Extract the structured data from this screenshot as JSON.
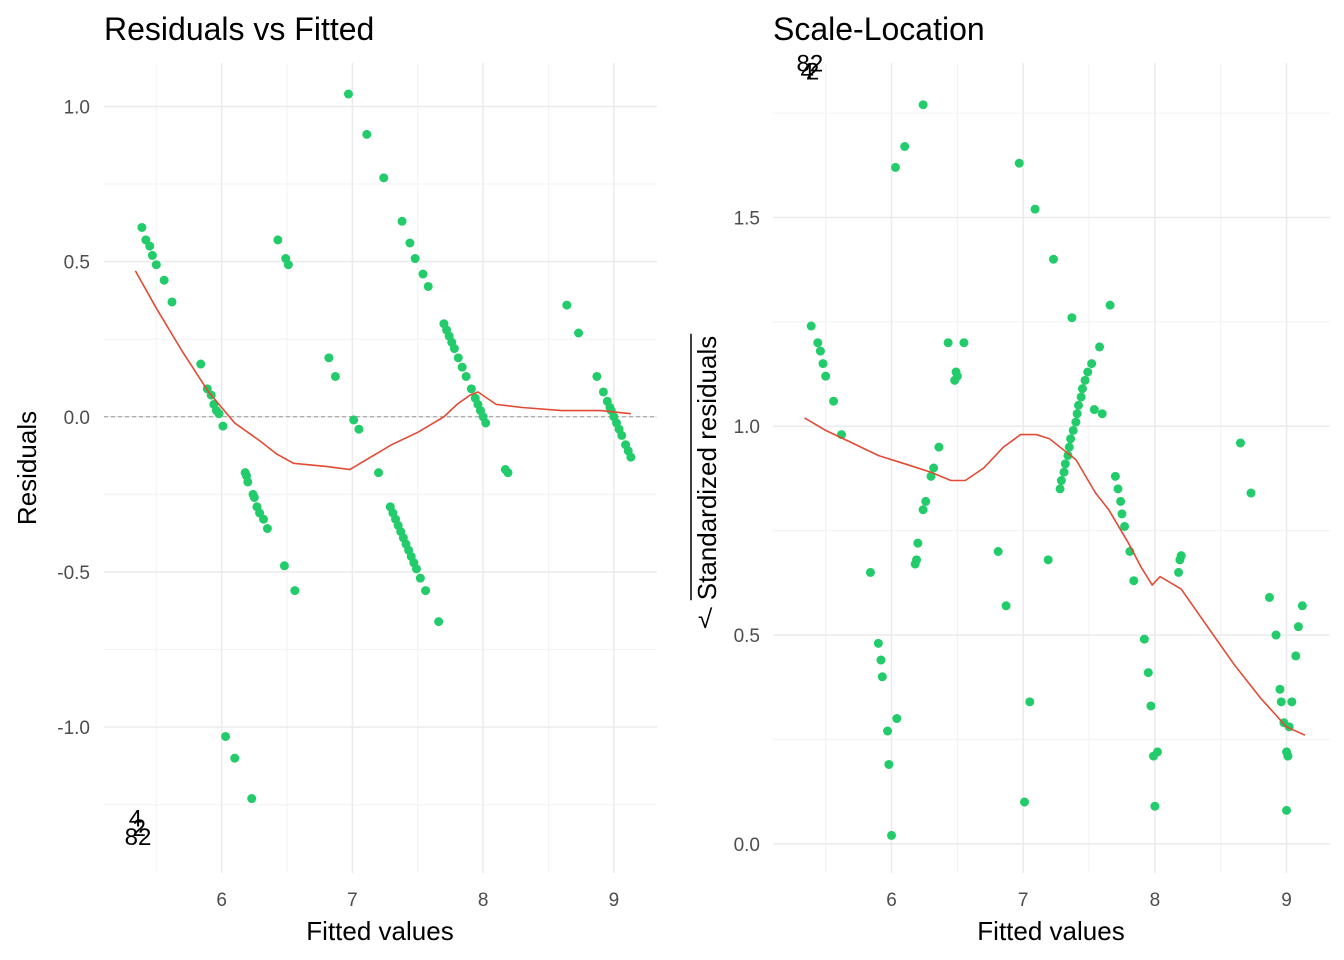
{
  "colors": {
    "points": "#22CC6A",
    "smooth": "#E24A33",
    "grid_major": "#EBEBEB",
    "grid_minor": "#F4F4F4",
    "zero_line": "#999999"
  },
  "chart_data": [
    {
      "type": "scatter",
      "title": "Residuals vs Fitted",
      "xlabel": "Fitted values",
      "ylabel": "Residuals",
      "xlim": [
        5.1,
        9.33
      ],
      "ylim": [
        -1.47,
        1.14
      ],
      "xticks": [
        6,
        7,
        8,
        9
      ],
      "xtick_labels": [
        "6",
        "7",
        "8",
        "9"
      ],
      "yticks": [
        -1.0,
        -0.5,
        0.0,
        0.5,
        1.0
      ],
      "ytick_labels": [
        "-1.0",
        "-0.5",
        "0.0",
        "0.5",
        "1.0"
      ],
      "grid": true,
      "reference_line": 0,
      "points": [
        [
          5.39,
          0.61
        ],
        [
          5.42,
          0.57
        ],
        [
          5.45,
          0.55
        ],
        [
          5.47,
          0.52
        ],
        [
          5.5,
          0.49
        ],
        [
          5.56,
          0.44
        ],
        [
          5.62,
          0.37
        ],
        [
          5.84,
          0.17
        ],
        [
          5.89,
          0.09
        ],
        [
          5.92,
          0.07
        ],
        [
          5.94,
          0.04
        ],
        [
          5.96,
          0.02
        ],
        [
          5.98,
          0.01
        ],
        [
          6.01,
          -0.03
        ],
        [
          6.03,
          -1.03
        ],
        [
          6.1,
          -1.1
        ],
        [
          6.18,
          -0.18
        ],
        [
          6.19,
          -0.19
        ],
        [
          6.2,
          -0.21
        ],
        [
          6.23,
          -1.23
        ],
        [
          6.24,
          -0.25
        ],
        [
          6.25,
          -0.26
        ],
        [
          6.27,
          -0.29
        ],
        [
          6.29,
          -0.31
        ],
        [
          6.32,
          -0.33
        ],
        [
          6.35,
          -0.36
        ],
        [
          6.43,
          0.57
        ],
        [
          6.48,
          -0.48
        ],
        [
          6.49,
          0.51
        ],
        [
          6.51,
          0.49
        ],
        [
          6.56,
          -0.56
        ],
        [
          6.82,
          0.19
        ],
        [
          6.87,
          0.13
        ],
        [
          6.97,
          1.04
        ],
        [
          7.01,
          -0.01
        ],
        [
          7.05,
          -0.04
        ],
        [
          7.11,
          0.91
        ],
        [
          7.2,
          -0.18
        ],
        [
          7.24,
          0.77
        ],
        [
          7.29,
          -0.29
        ],
        [
          7.31,
          -0.31
        ],
        [
          7.33,
          -0.33
        ],
        [
          7.35,
          -0.35
        ],
        [
          7.37,
          -0.37
        ],
        [
          7.38,
          0.63
        ],
        [
          7.39,
          -0.39
        ],
        [
          7.41,
          -0.41
        ],
        [
          7.43,
          -0.43
        ],
        [
          7.44,
          0.56
        ],
        [
          7.45,
          -0.45
        ],
        [
          7.47,
          -0.47
        ],
        [
          7.48,
          0.51
        ],
        [
          7.49,
          -0.49
        ],
        [
          7.52,
          -0.52
        ],
        [
          7.54,
          0.46
        ],
        [
          7.56,
          -0.56
        ],
        [
          7.58,
          0.42
        ],
        [
          7.66,
          -0.66
        ],
        [
          7.7,
          0.3
        ],
        [
          7.72,
          0.28
        ],
        [
          7.74,
          0.26
        ],
        [
          7.76,
          0.24
        ],
        [
          7.78,
          0.22
        ],
        [
          7.81,
          0.19
        ],
        [
          7.84,
          0.16
        ],
        [
          7.87,
          0.13
        ],
        [
          7.91,
          0.09
        ],
        [
          7.94,
          0.06
        ],
        [
          7.96,
          0.04
        ],
        [
          7.98,
          0.02
        ],
        [
          8.0,
          0.0
        ],
        [
          8.02,
          -0.02
        ],
        [
          8.17,
          -0.17
        ],
        [
          8.19,
          -0.18
        ],
        [
          8.64,
          0.36
        ],
        [
          8.73,
          0.27
        ],
        [
          8.87,
          0.13
        ],
        [
          8.92,
          0.08
        ],
        [
          8.95,
          0.05
        ],
        [
          8.97,
          0.03
        ],
        [
          8.98,
          0.02
        ],
        [
          9.0,
          0.0
        ],
        [
          9.02,
          -0.02
        ],
        [
          9.04,
          -0.04
        ],
        [
          9.06,
          -0.06
        ],
        [
          9.09,
          -0.09
        ],
        [
          9.11,
          -0.11
        ],
        [
          9.13,
          -0.13
        ]
      ],
      "smooth": [
        [
          5.34,
          0.47
        ],
        [
          5.5,
          0.35
        ],
        [
          5.7,
          0.21
        ],
        [
          5.9,
          0.08
        ],
        [
          6.1,
          -0.02
        ],
        [
          6.3,
          -0.08
        ],
        [
          6.42,
          -0.12
        ],
        [
          6.55,
          -0.15
        ],
        [
          6.8,
          -0.16
        ],
        [
          6.98,
          -0.17
        ],
        [
          7.1,
          -0.14
        ],
        [
          7.3,
          -0.09
        ],
        [
          7.5,
          -0.05
        ],
        [
          7.7,
          0.0
        ],
        [
          7.8,
          0.04
        ],
        [
          7.9,
          0.07
        ],
        [
          7.96,
          0.08
        ],
        [
          8.1,
          0.04
        ],
        [
          8.3,
          0.03
        ],
        [
          8.6,
          0.02
        ],
        [
          8.9,
          0.02
        ],
        [
          9.13,
          0.01
        ]
      ],
      "labels": [
        {
          "text": "4",
          "x": 5.34,
          "y": -1.32
        },
        {
          "text": "2",
          "x": 5.37,
          "y": -1.35
        },
        {
          "text": "82",
          "x": 5.36,
          "y": -1.38
        }
      ]
    },
    {
      "type": "scatter",
      "title": "Scale-Location",
      "xlabel": "Fitted values",
      "ylabel": "Standardized residuals",
      "ylabel_prefix": "√",
      "xlim": [
        5.1,
        9.33
      ],
      "ylim": [
        -0.07,
        1.87
      ],
      "xticks": [
        6,
        7,
        8,
        9
      ],
      "xtick_labels": [
        "6",
        "7",
        "8",
        "9"
      ],
      "yticks": [
        0.0,
        0.5,
        1.0,
        1.5
      ],
      "ytick_labels": [
        "0.0",
        "0.5",
        "1.0",
        "1.5"
      ],
      "grid": true,
      "points": [
        [
          5.39,
          1.24
        ],
        [
          5.44,
          1.2
        ],
        [
          5.46,
          1.18
        ],
        [
          5.48,
          1.15
        ],
        [
          5.5,
          1.12
        ],
        [
          5.56,
          1.06
        ],
        [
          5.62,
          0.98
        ],
        [
          5.84,
          0.65
        ],
        [
          5.9,
          0.48
        ],
        [
          5.92,
          0.44
        ],
        [
          5.93,
          0.4
        ],
        [
          5.97,
          0.27
        ],
        [
          5.98,
          0.19
        ],
        [
          6.0,
          0.02
        ],
        [
          6.03,
          1.62
        ],
        [
          6.04,
          0.3
        ],
        [
          6.1,
          1.67
        ],
        [
          6.18,
          0.67
        ],
        [
          6.19,
          0.68
        ],
        [
          6.2,
          0.72
        ],
        [
          6.24,
          1.77
        ],
        [
          6.24,
          0.8
        ],
        [
          6.26,
          0.82
        ],
        [
          6.3,
          0.88
        ],
        [
          6.32,
          0.9
        ],
        [
          6.36,
          0.95
        ],
        [
          6.43,
          1.2
        ],
        [
          6.48,
          1.11
        ],
        [
          6.49,
          1.13
        ],
        [
          6.5,
          1.12
        ],
        [
          6.55,
          1.2
        ],
        [
          6.81,
          0.7
        ],
        [
          6.87,
          0.57
        ],
        [
          6.97,
          1.63
        ],
        [
          7.01,
          0.1
        ],
        [
          7.05,
          0.34
        ],
        [
          7.09,
          1.52
        ],
        [
          7.19,
          0.68
        ],
        [
          7.23,
          1.4
        ],
        [
          7.28,
          0.85
        ],
        [
          7.29,
          0.87
        ],
        [
          7.31,
          0.89
        ],
        [
          7.32,
          0.91
        ],
        [
          7.34,
          0.93
        ],
        [
          7.37,
          1.26
        ],
        [
          7.35,
          0.95
        ],
        [
          7.36,
          0.97
        ],
        [
          7.38,
          0.99
        ],
        [
          7.4,
          1.01
        ],
        [
          7.41,
          1.03
        ],
        [
          7.42,
          1.05
        ],
        [
          7.44,
          1.07
        ],
        [
          7.45,
          1.09
        ],
        [
          7.47,
          1.11
        ],
        [
          7.49,
          1.13
        ],
        [
          7.52,
          1.15
        ],
        [
          7.54,
          1.04
        ],
        [
          7.58,
          1.19
        ],
        [
          7.6,
          1.03
        ],
        [
          7.66,
          1.29
        ],
        [
          7.7,
          0.88
        ],
        [
          7.72,
          0.85
        ],
        [
          7.74,
          0.82
        ],
        [
          7.75,
          0.79
        ],
        [
          7.77,
          0.76
        ],
        [
          7.81,
          0.7
        ],
        [
          7.84,
          0.63
        ],
        [
          7.92,
          0.49
        ],
        [
          7.95,
          0.41
        ],
        [
          7.97,
          0.33
        ],
        [
          7.99,
          0.21
        ],
        [
          8.0,
          0.09
        ],
        [
          8.02,
          0.22
        ],
        [
          8.18,
          0.65
        ],
        [
          8.19,
          0.68
        ],
        [
          8.2,
          0.69
        ],
        [
          8.65,
          0.96
        ],
        [
          8.73,
          0.84
        ],
        [
          8.87,
          0.59
        ],
        [
          8.92,
          0.5
        ],
        [
          8.95,
          0.37
        ],
        [
          8.96,
          0.34
        ],
        [
          8.98,
          0.29
        ],
        [
          9.0,
          0.22
        ],
        [
          9.01,
          0.21
        ],
        [
          9.02,
          0.28
        ],
        [
          9.04,
          0.34
        ],
        [
          9.07,
          0.45
        ],
        [
          9.09,
          0.52
        ],
        [
          9.12,
          0.57
        ],
        [
          9.0,
          0.08
        ]
      ],
      "smooth": [
        [
          5.34,
          1.02
        ],
        [
          5.5,
          0.99
        ],
        [
          5.7,
          0.96
        ],
        [
          5.9,
          0.93
        ],
        [
          6.1,
          0.91
        ],
        [
          6.3,
          0.89
        ],
        [
          6.45,
          0.87
        ],
        [
          6.56,
          0.87
        ],
        [
          6.7,
          0.9
        ],
        [
          6.85,
          0.95
        ],
        [
          6.98,
          0.98
        ],
        [
          7.1,
          0.98
        ],
        [
          7.2,
          0.97
        ],
        [
          7.4,
          0.92
        ],
        [
          7.55,
          0.84
        ],
        [
          7.65,
          0.8
        ],
        [
          7.8,
          0.72
        ],
        [
          7.9,
          0.66
        ],
        [
          7.98,
          0.62
        ],
        [
          8.04,
          0.64
        ],
        [
          8.2,
          0.61
        ],
        [
          8.4,
          0.52
        ],
        [
          8.6,
          0.43
        ],
        [
          8.8,
          0.35
        ],
        [
          9.0,
          0.28
        ],
        [
          9.14,
          0.26
        ]
      ],
      "labels": [
        {
          "text": "4",
          "x": 5.36,
          "y": 1.83
        },
        {
          "text": "2",
          "x": 5.4,
          "y": 1.83
        },
        {
          "text": "82",
          "x": 5.38,
          "y": 1.85
        }
      ]
    }
  ]
}
